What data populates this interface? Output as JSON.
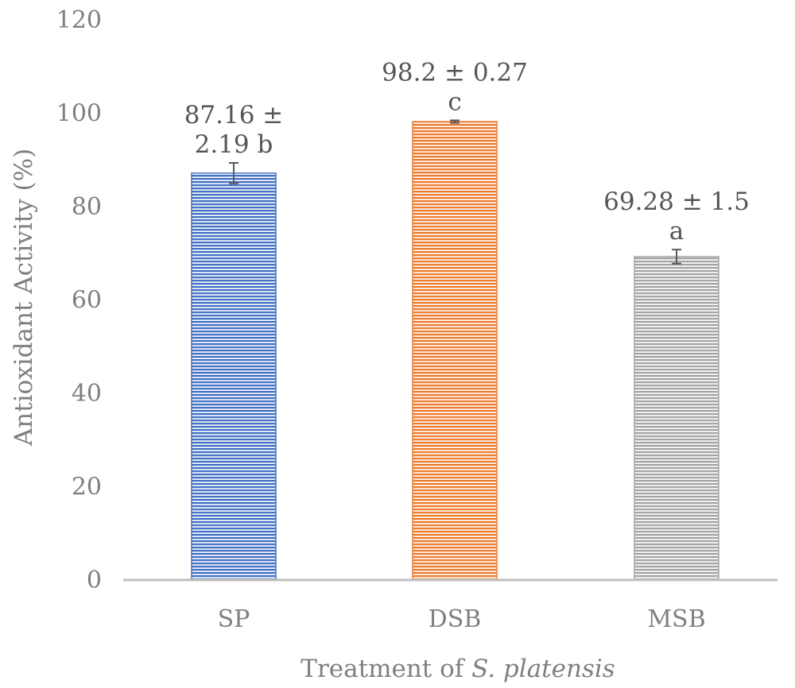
{
  "chart_data": {
    "type": "bar",
    "categories": [
      "SP",
      "DSB",
      "MSB"
    ],
    "values": [
      87.16,
      98.2,
      69.28
    ],
    "errors": [
      2.19,
      0.27,
      1.5
    ],
    "letters": [
      "b",
      "c",
      "a"
    ],
    "data_labels": [
      [
        "87.16 ±",
        "2.19 b"
      ],
      [
        "98.2 ± 0.27",
        "c"
      ],
      [
        "69.28 ± 1.5",
        "a"
      ]
    ],
    "colors": [
      "#4472c4",
      "#ed7d31",
      "#a5a5a5"
    ],
    "bar_pattern": "horizontal-lines",
    "ylim": [
      0,
      120
    ],
    "yticks": [
      "0",
      "20",
      "40",
      "60",
      "80",
      "100",
      "120"
    ],
    "ylabel": "Antioxidant Activity (%)",
    "xlabel_prefix": "Treatment of ",
    "xlabel_italic": "S. platensis",
    "grid": false,
    "legend": false
  }
}
